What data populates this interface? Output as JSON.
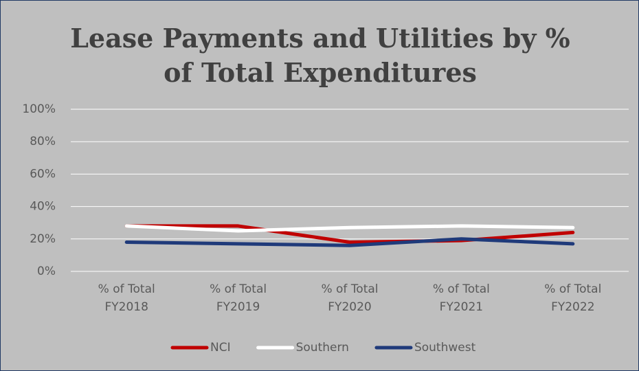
{
  "chart_data": {
    "type": "line",
    "title": "Lease Payments and Utilities by % of Total Expenditures",
    "categories": [
      "% of Total FY2018",
      "% of Total FY2019",
      "% of Total FY2020",
      "% of Total FY2021",
      "% of Total FY2022"
    ],
    "series": [
      {
        "name": "NCI",
        "color": "#c00000",
        "values": [
          28,
          28,
          18,
          19,
          24
        ]
      },
      {
        "name": "Southern",
        "color": "#ffffff",
        "values": [
          28,
          25,
          27,
          28,
          27
        ]
      },
      {
        "name": "Southwest",
        "color": "#1f3a7a",
        "values": [
          18,
          17,
          16,
          20,
          17
        ]
      }
    ],
    "ylim": [
      0,
      100
    ],
    "yticks": [
      {
        "value": 0,
        "label": "0%"
      },
      {
        "value": 20,
        "label": "20%"
      },
      {
        "value": 40,
        "label": "40%"
      },
      {
        "value": 60,
        "label": "60%"
      },
      {
        "value": 80,
        "label": "80%"
      },
      {
        "value": 100,
        "label": "100%"
      }
    ],
    "grid": true,
    "legend": "bottom"
  }
}
